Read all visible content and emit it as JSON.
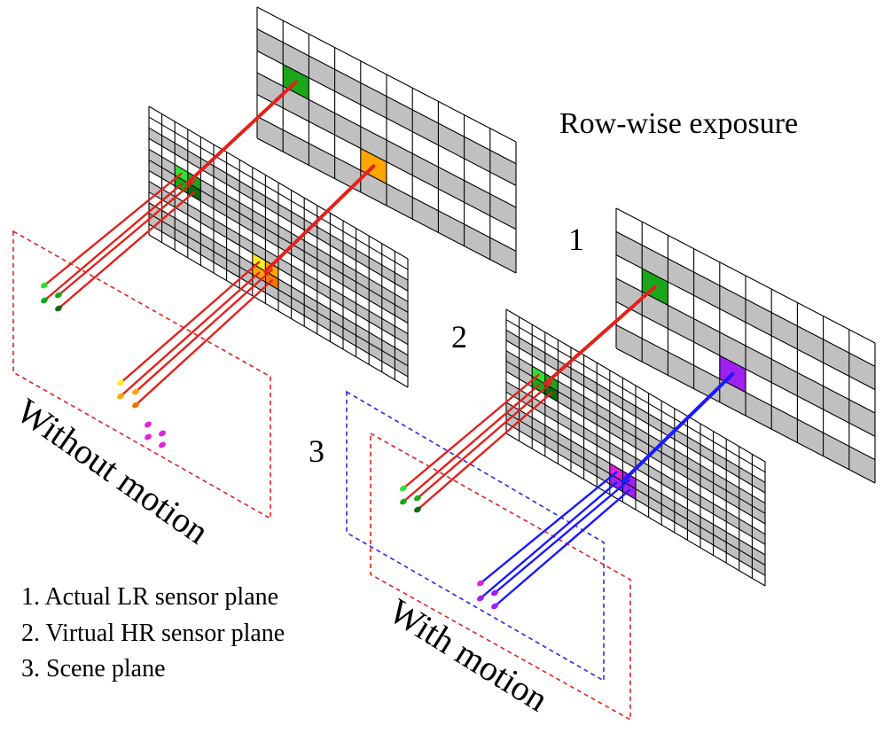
{
  "title": "Row-wise exposure",
  "plane_numbers": {
    "one": "1",
    "two": "2",
    "three": "3"
  },
  "legend": [
    "1. Actual LR sensor plane",
    "2. Virtual HR sensor plane",
    "3. Scene plane"
  ],
  "labels": {
    "without_motion": "Without motion",
    "with_motion": "With motion"
  },
  "grid": {
    "lr_cols": 10,
    "lr_rows": 6,
    "hr_cols": 20,
    "hr_rows": 12
  },
  "colors": {
    "grid_line": "#000000",
    "row_shade": "#c0c0c0",
    "ray_red": "#e3211c",
    "ray_blue": "#1a1aff",
    "scene_left": "#e3211c",
    "scene_blue": "#2a2ae6",
    "pixel_green": "#1aa61a",
    "pixel_dark_green": "#0f6b0f",
    "pixel_light_green": "#33dd33",
    "pixel_orange": "#ffa500",
    "pixel_dark_orange": "#ee7700",
    "pixel_yellow": "#ffee22",
    "pixel_purple": "#a020f0",
    "pixel_magenta": "#e020e0"
  }
}
